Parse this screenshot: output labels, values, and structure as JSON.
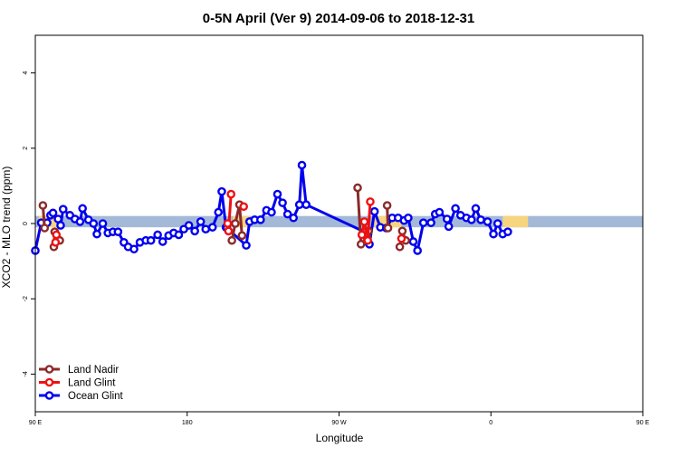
{
  "chart_data": {
    "type": "line",
    "title": "0-5N April (Ver 9)   2014-09-06 to 2018-12-31",
    "xlabel": "Longitude",
    "ylabel": "XCO2 - MLO trend (ppm)",
    "xlim": [
      -180,
      180
    ],
    "ylim": [
      -5,
      5
    ],
    "x_ticks": [
      {
        "value": -180,
        "label": "90 E"
      },
      {
        "value": -90,
        "label": "180"
      },
      {
        "value": 0,
        "label": "90 W"
      },
      {
        "value": 90,
        "label": "0"
      },
      {
        "value": 180,
        "label": "90 E"
      }
    ],
    "y_ticks": [
      {
        "value": -4,
        "label": "-4"
      },
      {
        "value": -2,
        "label": "-2"
      },
      {
        "value": 0,
        "label": "0"
      },
      {
        "value": 2,
        "label": "2"
      },
      {
        "value": 4,
        "label": "4"
      }
    ],
    "legend_position": "bottom-left",
    "band": {
      "y_min": -0.1,
      "y_max": 0.2,
      "ocean_color": "#a4b9d8",
      "land_color": "#f7d57e"
    },
    "land_spans": [
      [
        -178,
        -167
      ],
      [
        -63,
        -53
      ],
      [
        97,
        112
      ],
      [
        21,
        37
      ]
    ],
    "series": [
      {
        "name": "Land Nadir",
        "color": "#8b2a2a",
        "segments": [
          [
            [
              -175.5,
              0.48
            ],
            [
              -174.5,
              -0.12
            ]
          ],
          [
            [
              -169,
              -0.62
            ],
            [
              -168.5,
              -0.22
            ],
            [
              -165.5,
              -0.45
            ]
          ],
          [
            [
              -63.5,
              -0.45
            ],
            [
              -61.5,
              0.0
            ],
            [
              -59,
              0.5
            ],
            [
              -57.5,
              -0.32
            ]
          ],
          [
            [
              11,
              0.95
            ],
            [
              13,
              -0.55
            ],
            [
              16.5,
              -0.35
            ],
            [
              17.5,
              -0.2
            ]
          ],
          [
            [
              28.5,
              0.48
            ],
            [
              29,
              -0.12
            ]
          ],
          [
            [
              36,
              -0.62
            ],
            [
              37.5,
              -0.2
            ],
            [
              39.5,
              -0.45
            ]
          ]
        ]
      },
      {
        "name": "Land Glint",
        "color": "#ee1111",
        "segments": [
          [
            [
              -168,
              -0.5
            ],
            [
              -167.5,
              -0.3
            ]
          ],
          [
            [
              -66,
              0.0
            ],
            [
              -65.5,
              -0.2
            ],
            [
              -64,
              0.78
            ]
          ],
          [
            [
              -56.5,
              0.45
            ]
          ],
          [
            [
              13.5,
              -0.3
            ],
            [
              15,
              0.05
            ],
            [
              17,
              -0.45
            ],
            [
              18.5,
              0.58
            ]
          ],
          [
            [
              37,
              -0.4
            ]
          ]
        ]
      },
      {
        "name": "Ocean Glint",
        "color": "#0000ee",
        "points": [
          [
            -180,
            -0.72
          ],
          [
            -176.5,
            0.02
          ],
          [
            -173,
            0.02
          ],
          [
            -171,
            0.22
          ],
          [
            -169.5,
            0.28
          ],
          [
            -166.5,
            0.12
          ],
          [
            -165,
            -0.05
          ],
          [
            -163.5,
            0.38
          ],
          [
            -159.5,
            0.22
          ],
          [
            -156.5,
            0.12
          ],
          [
            -153.5,
            0.05
          ],
          [
            -152,
            0.4
          ],
          [
            -148.5,
            0.1
          ],
          [
            -145.5,
            0.0
          ],
          [
            -143.5,
            -0.28
          ],
          [
            -140,
            0.0
          ],
          [
            -137,
            -0.25
          ],
          [
            -134,
            -0.22
          ],
          [
            -131,
            -0.22
          ],
          [
            -127.5,
            -0.5
          ],
          [
            -125,
            -0.62
          ],
          [
            -121.5,
            -0.68
          ],
          [
            -118,
            -0.5
          ],
          [
            -114.5,
            -0.45
          ],
          [
            -111.5,
            -0.45
          ],
          [
            -107.5,
            -0.3
          ],
          [
            -104.5,
            -0.48
          ],
          [
            -101,
            -0.32
          ],
          [
            -98,
            -0.25
          ],
          [
            -95,
            -0.3
          ],
          [
            -92,
            -0.15
          ],
          [
            -89,
            -0.05
          ],
          [
            -85.5,
            -0.2
          ],
          [
            -82,
            0.05
          ],
          [
            -79,
            -0.15
          ],
          [
            -75,
            -0.1
          ],
          [
            -71.5,
            0.3
          ],
          [
            -69.5,
            0.85
          ],
          [
            -67,
            -0.1
          ],
          [
            -66.5,
            -0.12
          ],
          [
            -55,
            -0.58
          ],
          [
            -53,
            0.05
          ],
          [
            -50,
            0.1
          ],
          [
            -46.5,
            0.1
          ],
          [
            -43,
            0.35
          ],
          [
            -40,
            0.3
          ],
          [
            -36.5,
            0.78
          ],
          [
            -33.5,
            0.55
          ],
          [
            -30.5,
            0.25
          ],
          [
            -27,
            0.15
          ],
          [
            -23.5,
            0.5
          ],
          [
            -22,
            1.55
          ],
          [
            -19.5,
            0.5
          ],
          [
            15,
            -0.22
          ],
          [
            18,
            -0.55
          ],
          [
            21,
            0.32
          ],
          [
            24.5,
            -0.1
          ],
          [
            28,
            -0.12
          ],
          [
            31.5,
            0.15
          ],
          [
            35,
            0.15
          ],
          [
            38.5,
            0.08
          ],
          [
            41,
            0.15
          ],
          [
            44,
            -0.48
          ],
          [
            46.5,
            -0.72
          ],
          [
            50,
            0.02
          ],
          [
            54.5,
            0.02
          ],
          [
            57,
            0.25
          ],
          [
            59.5,
            0.3
          ],
          [
            64,
            0.12
          ],
          [
            65,
            -0.08
          ],
          [
            69,
            0.4
          ],
          [
            72,
            0.22
          ],
          [
            75.5,
            0.15
          ],
          [
            78.5,
            0.1
          ],
          [
            81,
            0.4
          ],
          [
            84,
            0.1
          ],
          [
            88,
            0.05
          ],
          [
            91.5,
            -0.28
          ],
          [
            94,
            0.0
          ],
          [
            97,
            -0.28
          ],
          [
            100,
            -0.22
          ]
        ]
      }
    ]
  }
}
